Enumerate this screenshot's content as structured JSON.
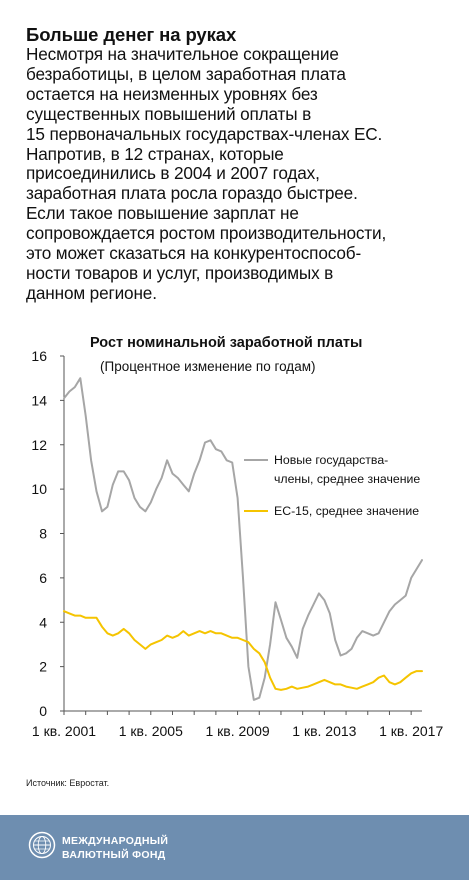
{
  "headline": "Больше денег на руках",
  "body_lines": [
    "Несмотря на значительное сокращение",
    "безработицы, в целом заработная плата",
    "остается на неизменных уровнях без",
    "существенных повышений оплаты в",
    "15 первоначальных государствах-членах ЕС.",
    "Напротив, в 12 странах, которые",
    "присоединились в 2004 и 2007 годах,",
    "заработная плата росла гораздо быстрее.",
    "Если такое повышение зарплат не",
    "сопровождается ростом производительности,",
    "это может сказаться на конкурентоспособ-",
    "ности товаров и услуг, производимых в",
    "данном регионе."
  ],
  "source": "Источник: Евростат.",
  "footer": {
    "org_line1": "МЕЖДУНАРОДНЫЙ",
    "org_line2": "ВАЛЮТНЫЙ ФОНД"
  },
  "colors": {
    "series_new_members": "#a6a6a6",
    "series_eu15": "#f5c400",
    "footer_bg": "#6e8eb0"
  },
  "chart_data": {
    "type": "line",
    "title": "Рост номинальной заработной платы",
    "subtitle": "(Процентное изменение по годам)",
    "xlabel": "",
    "ylabel": "",
    "ylim": [
      0,
      16
    ],
    "yticks": [
      0,
      2,
      4,
      6,
      8,
      10,
      12,
      14,
      16
    ],
    "xticks": [
      {
        "t": 0,
        "label": "1 кв. 2001"
      },
      {
        "t": 16,
        "label": "1 кв. 2005"
      },
      {
        "t": 32,
        "label": "1 кв. 2009"
      },
      {
        "t": 48,
        "label": "1 кв. 2013"
      },
      {
        "t": 64,
        "label": "1 кв. 2017"
      }
    ],
    "legend_position": "right",
    "grid": false,
    "series": [
      {
        "name": "Новые государства-\nчлены, среднее значение",
        "color": "#a6a6a6",
        "values": [
          14.1,
          14.4,
          14.6,
          15.0,
          13.3,
          11.3,
          9.9,
          9.0,
          9.2,
          10.2,
          10.8,
          10.8,
          10.4,
          9.6,
          9.2,
          9.0,
          9.4,
          10.0,
          10.5,
          11.3,
          10.7,
          10.5,
          10.2,
          9.9,
          10.7,
          11.3,
          12.1,
          12.2,
          11.8,
          11.7,
          11.3,
          11.2,
          9.6,
          6.0,
          2.0,
          0.5,
          0.6,
          1.5,
          3.0,
          4.9,
          4.1,
          3.3,
          2.9,
          2.4,
          3.7,
          4.3,
          4.8,
          5.3,
          5.0,
          4.4,
          3.2,
          2.5,
          2.6,
          2.8,
          3.3,
          3.6,
          3.5,
          3.4,
          3.5,
          4.0,
          4.5,
          4.8,
          5.0,
          5.2,
          6.0,
          6.4,
          6.8
        ]
      },
      {
        "name": "ЕС-15, среднее значение",
        "color": "#f5c400",
        "values": [
          4.5,
          4.4,
          4.3,
          4.3,
          4.2,
          4.2,
          4.2,
          3.8,
          3.5,
          3.4,
          3.5,
          3.7,
          3.5,
          3.2,
          3.0,
          2.8,
          3.0,
          3.1,
          3.2,
          3.4,
          3.3,
          3.4,
          3.6,
          3.4,
          3.5,
          3.6,
          3.5,
          3.6,
          3.5,
          3.5,
          3.4,
          3.3,
          3.3,
          3.2,
          3.1,
          2.8,
          2.6,
          2.2,
          1.5,
          1.0,
          0.95,
          1.0,
          1.1,
          1.0,
          1.05,
          1.1,
          1.2,
          1.3,
          1.4,
          1.3,
          1.2,
          1.2,
          1.1,
          1.05,
          1.0,
          1.1,
          1.2,
          1.3,
          1.5,
          1.6,
          1.3,
          1.2,
          1.3,
          1.5,
          1.7,
          1.8,
          1.8
        ]
      }
    ]
  }
}
